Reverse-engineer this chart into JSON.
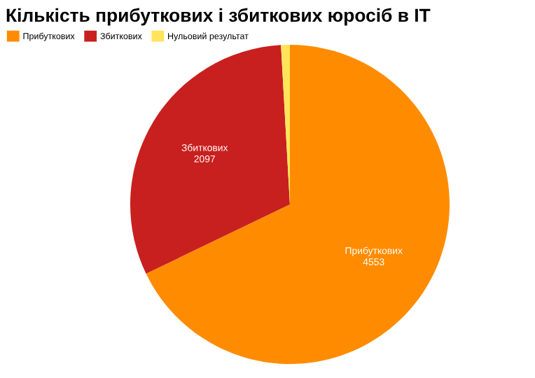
{
  "chart_data": {
    "type": "pie",
    "title": "Кількість прибуткових і збиткових юросіб в IT",
    "categories": [
      "Прибуткових",
      "Збиткових",
      "Нульовий результат"
    ],
    "values": [
      4553,
      2097,
      60
    ],
    "value_labels": [
      "4553",
      "2097",
      null
    ],
    "colors": [
      "#ff8c00",
      "#c8201e",
      "#ffe45c"
    ],
    "legend": "top left"
  }
}
